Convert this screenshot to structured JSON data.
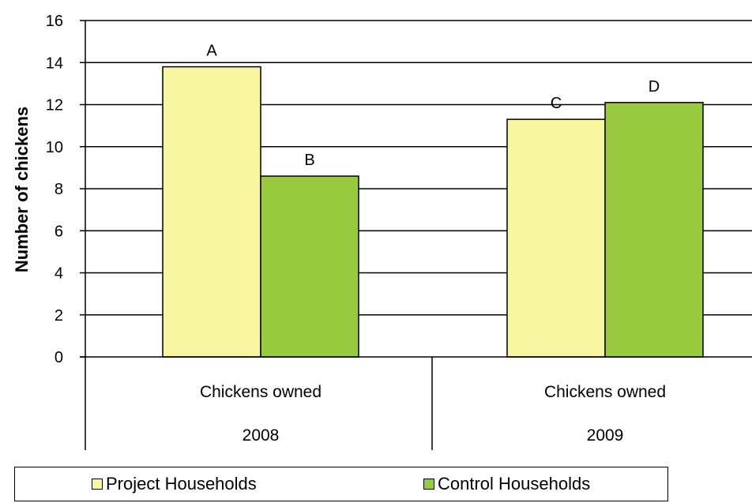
{
  "chart_data": {
    "type": "bar",
    "ylabel": "Number of chickens",
    "ylim": [
      0,
      16
    ],
    "yticks": [
      "0",
      "2",
      "4",
      "6",
      "8",
      "10",
      "12",
      "14",
      "16"
    ],
    "grid": true,
    "groups": [
      {
        "category": "Chickens owned",
        "year": "2008"
      },
      {
        "category": "Chickens owned",
        "year": "2009"
      }
    ],
    "series": [
      {
        "name": "Project Households",
        "color": "#f8f5a0",
        "values": [
          13.8,
          11.3
        ],
        "bar_labels": [
          "A",
          "C"
        ]
      },
      {
        "name": "Control Households",
        "color": "#99c93f",
        "values": [
          8.6,
          12.1
        ],
        "bar_labels": [
          "B",
          "D"
        ]
      }
    ],
    "legend_position": "bottom"
  }
}
